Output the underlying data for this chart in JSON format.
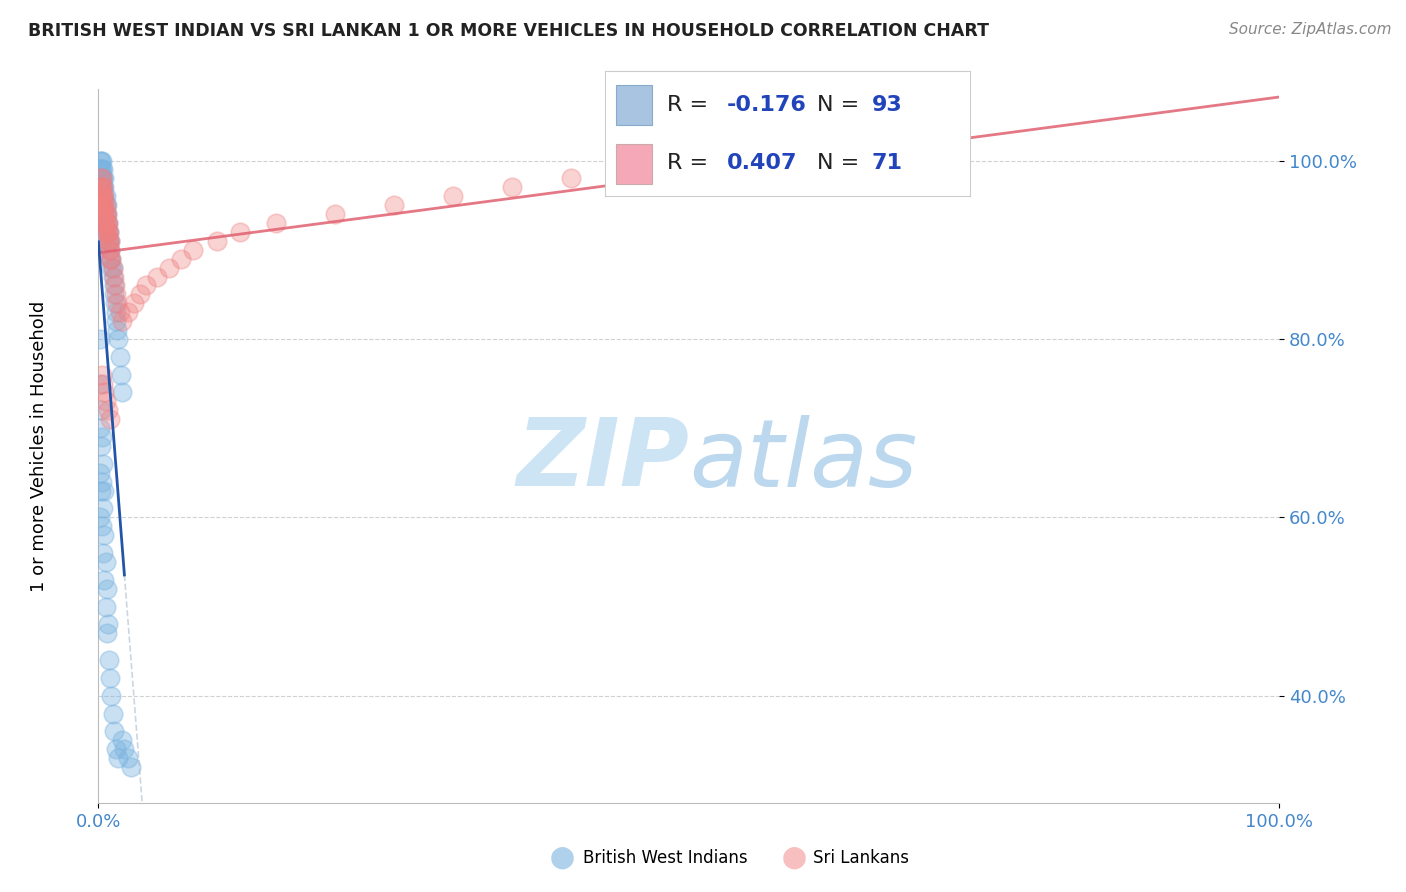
{
  "title": "BRITISH WEST INDIAN VS SRI LANKAN 1 OR MORE VEHICLES IN HOUSEHOLD CORRELATION CHART",
  "source": "Source: ZipAtlas.com",
  "ylabel": "1 or more Vehicles in Household",
  "blue_R": -0.176,
  "blue_N": 93,
  "pink_R": 0.407,
  "pink_N": 71,
  "blue_color": "#7ab3e0",
  "pink_color": "#f08080",
  "blue_line_color": "#2255aa",
  "pink_line_color": "#e06070",
  "legend_color1": "#a8c4e0",
  "legend_color2": "#f4a8b8",
  "watermark_color": "#cde4f5",
  "background_color": "#ffffff",
  "grid_color": "#cccccc",
  "axis_label_color": "#4488cc",
  "title_color": "#222222",
  "source_color": "#888888",
  "blue_scatter_x": [
    0.001,
    0.001,
    0.001,
    0.001,
    0.002,
    0.002,
    0.002,
    0.002,
    0.002,
    0.002,
    0.003,
    0.003,
    0.003,
    0.003,
    0.003,
    0.003,
    0.003,
    0.003,
    0.003,
    0.003,
    0.004,
    0.004,
    0.004,
    0.004,
    0.004,
    0.004,
    0.005,
    0.005,
    0.005,
    0.005,
    0.005,
    0.005,
    0.006,
    0.006,
    0.006,
    0.007,
    0.007,
    0.007,
    0.008,
    0.008,
    0.008,
    0.009,
    0.009,
    0.01,
    0.01,
    0.01,
    0.011,
    0.011,
    0.012,
    0.012,
    0.013,
    0.013,
    0.014,
    0.015,
    0.015,
    0.016,
    0.017,
    0.018,
    0.019,
    0.02,
    0.001,
    0.001,
    0.001,
    0.001,
    0.001,
    0.002,
    0.002,
    0.002,
    0.003,
    0.003,
    0.003,
    0.004,
    0.004,
    0.004,
    0.005,
    0.005,
    0.005,
    0.006,
    0.006,
    0.007,
    0.007,
    0.008,
    0.009,
    0.01,
    0.011,
    0.012,
    0.013,
    0.015,
    0.017,
    0.02,
    0.022,
    0.025,
    0.028
  ],
  "blue_scatter_y": [
    1.0,
    0.99,
    0.98,
    0.97,
    1.0,
    0.99,
    0.98,
    0.97,
    0.96,
    0.95,
    1.0,
    0.99,
    0.98,
    0.97,
    0.96,
    0.95,
    0.94,
    0.93,
    0.92,
    0.91,
    0.99,
    0.98,
    0.97,
    0.96,
    0.95,
    0.94,
    0.98,
    0.97,
    0.96,
    0.95,
    0.94,
    0.93,
    0.96,
    0.95,
    0.94,
    0.95,
    0.94,
    0.93,
    0.93,
    0.92,
    0.91,
    0.92,
    0.91,
    0.91,
    0.9,
    0.89,
    0.89,
    0.88,
    0.88,
    0.87,
    0.86,
    0.85,
    0.84,
    0.83,
    0.82,
    0.81,
    0.8,
    0.78,
    0.76,
    0.74,
    0.8,
    0.75,
    0.7,
    0.65,
    0.6,
    0.72,
    0.68,
    0.63,
    0.69,
    0.64,
    0.59,
    0.66,
    0.61,
    0.56,
    0.63,
    0.58,
    0.53,
    0.55,
    0.5,
    0.52,
    0.47,
    0.48,
    0.44,
    0.42,
    0.4,
    0.38,
    0.36,
    0.34,
    0.33,
    0.35,
    0.34,
    0.33,
    0.32
  ],
  "pink_scatter_x": [
    0.001,
    0.001,
    0.001,
    0.002,
    0.002,
    0.002,
    0.002,
    0.003,
    0.003,
    0.003,
    0.003,
    0.003,
    0.004,
    0.004,
    0.004,
    0.004,
    0.004,
    0.005,
    0.005,
    0.005,
    0.005,
    0.006,
    0.006,
    0.006,
    0.006,
    0.007,
    0.007,
    0.007,
    0.008,
    0.008,
    0.008,
    0.009,
    0.009,
    0.009,
    0.01,
    0.01,
    0.01,
    0.011,
    0.012,
    0.013,
    0.014,
    0.015,
    0.016,
    0.018,
    0.02,
    0.025,
    0.03,
    0.035,
    0.04,
    0.05,
    0.06,
    0.07,
    0.08,
    0.1,
    0.12,
    0.15,
    0.2,
    0.25,
    0.3,
    0.35,
    0.4,
    0.45,
    0.5,
    0.55,
    0.6,
    0.003,
    0.004,
    0.005,
    0.006,
    0.008,
    0.01
  ],
  "pink_scatter_y": [
    0.97,
    0.96,
    0.95,
    0.98,
    0.97,
    0.96,
    0.95,
    0.98,
    0.97,
    0.96,
    0.95,
    0.94,
    0.97,
    0.96,
    0.95,
    0.94,
    0.93,
    0.96,
    0.95,
    0.94,
    0.93,
    0.95,
    0.94,
    0.93,
    0.92,
    0.94,
    0.93,
    0.92,
    0.93,
    0.92,
    0.91,
    0.92,
    0.91,
    0.9,
    0.91,
    0.9,
    0.89,
    0.89,
    0.88,
    0.87,
    0.86,
    0.85,
    0.84,
    0.83,
    0.82,
    0.83,
    0.84,
    0.85,
    0.86,
    0.87,
    0.88,
    0.89,
    0.9,
    0.91,
    0.92,
    0.93,
    0.94,
    0.95,
    0.96,
    0.97,
    0.98,
    0.99,
    1.0,
    0.99,
    0.98,
    0.76,
    0.75,
    0.74,
    0.73,
    0.72,
    0.71
  ],
  "xlim": [
    0.0,
    1.0
  ],
  "ylim": [
    0.28,
    1.08
  ],
  "xticks": [
    0.0,
    1.0
  ],
  "xticklabels": [
    "0.0%",
    "100.0%"
  ],
  "yticks": [
    0.4,
    0.6,
    0.8,
    1.0
  ],
  "yticklabels": [
    "40.0%",
    "60.0%",
    "80.0%",
    "100.0%"
  ]
}
